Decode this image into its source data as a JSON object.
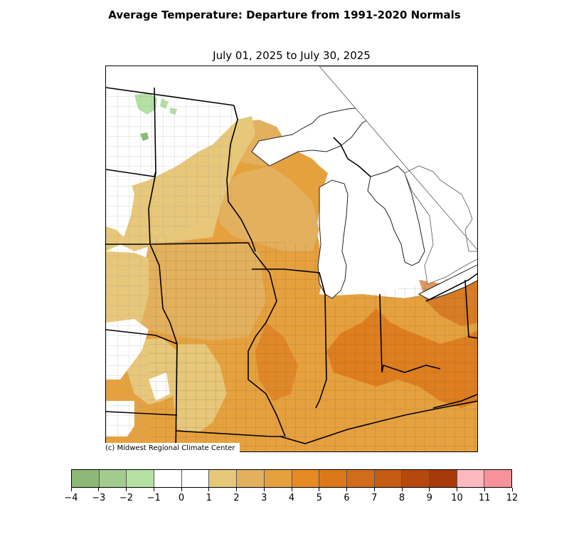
{
  "title": "Average Temperature: Departure from 1991-2020 Normals",
  "subtitle": "July 01, 2025 to July 30, 2025",
  "credit": "(c) Midwest Regional Climate Center",
  "legend": {
    "ticks": [
      "−4",
      "−3",
      "−2",
      "−1",
      "0",
      "1",
      "2",
      "3",
      "4",
      "5",
      "6",
      "7",
      "8",
      "9",
      "10",
      "11",
      "12"
    ],
    "colors": [
      "#8db978",
      "#a2cb8d",
      "#b4e0a3",
      "#ffffff",
      "#ffffff",
      "#e7c77a",
      "#e3b05e",
      "#e6a13f",
      "#e58a25",
      "#dc781a",
      "#d16c1b",
      "#c45c13",
      "#b6480d",
      "#a83909",
      "#fdb8c0",
      "#f8929a"
    ]
  },
  "map_colors": {
    "ocean": "#ffffff",
    "cool": "#b4e0a3",
    "cool_dark": "#8db978",
    "light": "#e7c77a",
    "mid": "#e3b05e",
    "warm": "#e6a13f",
    "hot": "#dc781a"
  }
}
